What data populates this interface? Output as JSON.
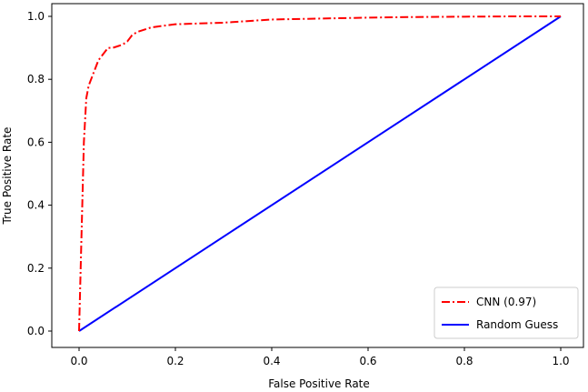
{
  "chart_data": {
    "type": "line",
    "title": "",
    "xlabel": "False Positive Rate",
    "ylabel": "True Positive Rate",
    "xlim": [
      0,
      1
    ],
    "ylim": [
      0,
      1
    ],
    "xticks": [
      "0.0",
      "0.2",
      "0.4",
      "0.6",
      "0.8",
      "1.0"
    ],
    "yticks": [
      "0.0",
      "0.2",
      "0.4",
      "0.6",
      "0.8",
      "1.0"
    ],
    "grid": false,
    "legend_position": "lower-right",
    "series": [
      {
        "name": "CNN (0.97)",
        "color": "#ff0000",
        "line_style": "dash-dot",
        "x": [
          0.0,
          0.005,
          0.01,
          0.015,
          0.02,
          0.025,
          0.03,
          0.04,
          0.05,
          0.06,
          0.07,
          0.08,
          0.09,
          0.1,
          0.11,
          0.12,
          0.15,
          0.2,
          0.3,
          0.4,
          0.5,
          0.6,
          0.7,
          0.8,
          0.9,
          1.0
        ],
        "y": [
          0.0,
          0.3,
          0.6,
          0.74,
          0.78,
          0.8,
          0.82,
          0.86,
          0.88,
          0.9,
          0.9,
          0.905,
          0.91,
          0.92,
          0.94,
          0.95,
          0.965,
          0.975,
          0.98,
          0.99,
          0.993,
          0.996,
          0.998,
          0.999,
          1.0,
          1.0
        ]
      },
      {
        "name": "Random Guess",
        "color": "#0000ff",
        "line_style": "solid",
        "x": [
          0.0,
          1.0
        ],
        "y": [
          0.0,
          1.0
        ]
      }
    ]
  }
}
